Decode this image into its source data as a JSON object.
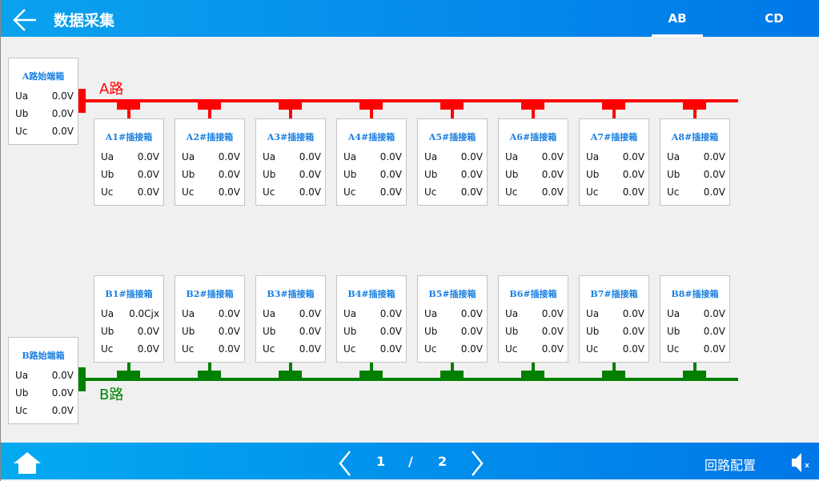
{
  "header": {
    "title": "数据采集",
    "tabs": [
      {
        "label": "AB",
        "active": true
      },
      {
        "label": "CD",
        "active": false
      }
    ]
  },
  "colors": {
    "a_line": "#ff0000",
    "b_line": "#008000",
    "title_blue": "#1a7fe0"
  },
  "lineA": {
    "label": "A路",
    "source": {
      "title": "A路始端箱",
      "rows": [
        {
          "k": "Ua",
          "v": "0.0V"
        },
        {
          "k": "Ub",
          "v": "0.0V"
        },
        {
          "k": "Uc",
          "v": "0.0V"
        }
      ]
    },
    "boxes": [
      {
        "title": "A1#插接箱",
        "rows": [
          {
            "k": "Ua",
            "v": "0.0V"
          },
          {
            "k": "Ub",
            "v": "0.0V"
          },
          {
            "k": "Uc",
            "v": "0.0V"
          }
        ]
      },
      {
        "title": "A2#插接箱",
        "rows": [
          {
            "k": "Ua",
            "v": "0.0V"
          },
          {
            "k": "Ub",
            "v": "0.0V"
          },
          {
            "k": "Uc",
            "v": "0.0V"
          }
        ]
      },
      {
        "title": "A3#插接箱",
        "rows": [
          {
            "k": "Ua",
            "v": "0.0V"
          },
          {
            "k": "Ub",
            "v": "0.0V"
          },
          {
            "k": "Uc",
            "v": "0.0V"
          }
        ]
      },
      {
        "title": "A4#插接箱",
        "rows": [
          {
            "k": "Ua",
            "v": "0.0V"
          },
          {
            "k": "Ub",
            "v": "0.0V"
          },
          {
            "k": "Uc",
            "v": "0.0V"
          }
        ]
      },
      {
        "title": "A5#插接箱",
        "rows": [
          {
            "k": "Ua",
            "v": "0.0V"
          },
          {
            "k": "Ub",
            "v": "0.0V"
          },
          {
            "k": "Uc",
            "v": "0.0V"
          }
        ]
      },
      {
        "title": "A6#插接箱",
        "rows": [
          {
            "k": "Ua",
            "v": "0.0V"
          },
          {
            "k": "Ub",
            "v": "0.0V"
          },
          {
            "k": "Uc",
            "v": "0.0V"
          }
        ]
      },
      {
        "title": "A7#插接箱",
        "rows": [
          {
            "k": "Ua",
            "v": "0.0V"
          },
          {
            "k": "Ub",
            "v": "0.0V"
          },
          {
            "k": "Uc",
            "v": "0.0V"
          }
        ]
      },
      {
        "title": "A8#插接箱",
        "rows": [
          {
            "k": "Ua",
            "v": "0.0V"
          },
          {
            "k": "Ub",
            "v": "0.0V"
          },
          {
            "k": "Uc",
            "v": "0.0V"
          }
        ]
      }
    ]
  },
  "lineB": {
    "label": "B路",
    "source": {
      "title": "B路始端箱",
      "rows": [
        {
          "k": "Ua",
          "v": "0.0V"
        },
        {
          "k": "Ub",
          "v": "0.0V"
        },
        {
          "k": "Uc",
          "v": "0.0V"
        }
      ]
    },
    "boxes": [
      {
        "title": "B1#插接箱",
        "rows": [
          {
            "k": "Ua",
            "v": "0.0Cjx"
          },
          {
            "k": "Ub",
            "v": "0.0V"
          },
          {
            "k": "Uc",
            "v": "0.0V"
          }
        ]
      },
      {
        "title": "B2#插接箱",
        "rows": [
          {
            "k": "Ua",
            "v": "0.0V"
          },
          {
            "k": "Ub",
            "v": "0.0V"
          },
          {
            "k": "Uc",
            "v": "0.0V"
          }
        ]
      },
      {
        "title": "B3#插接箱",
        "rows": [
          {
            "k": "Ua",
            "v": "0.0V"
          },
          {
            "k": "Ub",
            "v": "0.0V"
          },
          {
            "k": "Uc",
            "v": "0.0V"
          }
        ]
      },
      {
        "title": "B4#插接箱",
        "rows": [
          {
            "k": "Ua",
            "v": "0.0V"
          },
          {
            "k": "Ub",
            "v": "0.0V"
          },
          {
            "k": "Uc",
            "v": "0.0V"
          }
        ]
      },
      {
        "title": "B5#插接箱",
        "rows": [
          {
            "k": "Ua",
            "v": "0.0V"
          },
          {
            "k": "Ub",
            "v": "0.0V"
          },
          {
            "k": "Uc",
            "v": "0.0V"
          }
        ]
      },
      {
        "title": "B6#插接箱",
        "rows": [
          {
            "k": "Ua",
            "v": "0.0V"
          },
          {
            "k": "Ub",
            "v": "0.0V"
          },
          {
            "k": "Uc",
            "v": "0.0V"
          }
        ]
      },
      {
        "title": "B7#插接箱",
        "rows": [
          {
            "k": "Ua",
            "v": "0.0V"
          },
          {
            "k": "Ub",
            "v": "0.0V"
          },
          {
            "k": "Uc",
            "v": "0.0V"
          }
        ]
      },
      {
        "title": "B8#插接箱",
        "rows": [
          {
            "k": "Ua",
            "v": "0.0V"
          },
          {
            "k": "Ub",
            "v": "0.0V"
          },
          {
            "k": "Uc",
            "v": "0.0V"
          }
        ]
      }
    ]
  },
  "footer": {
    "page_current": "1",
    "page_sep": "/",
    "page_total": "2",
    "config_label": "回路配置",
    "icons": [
      "home-icon",
      "prev-icon",
      "next-icon",
      "mute-icon"
    ]
  }
}
